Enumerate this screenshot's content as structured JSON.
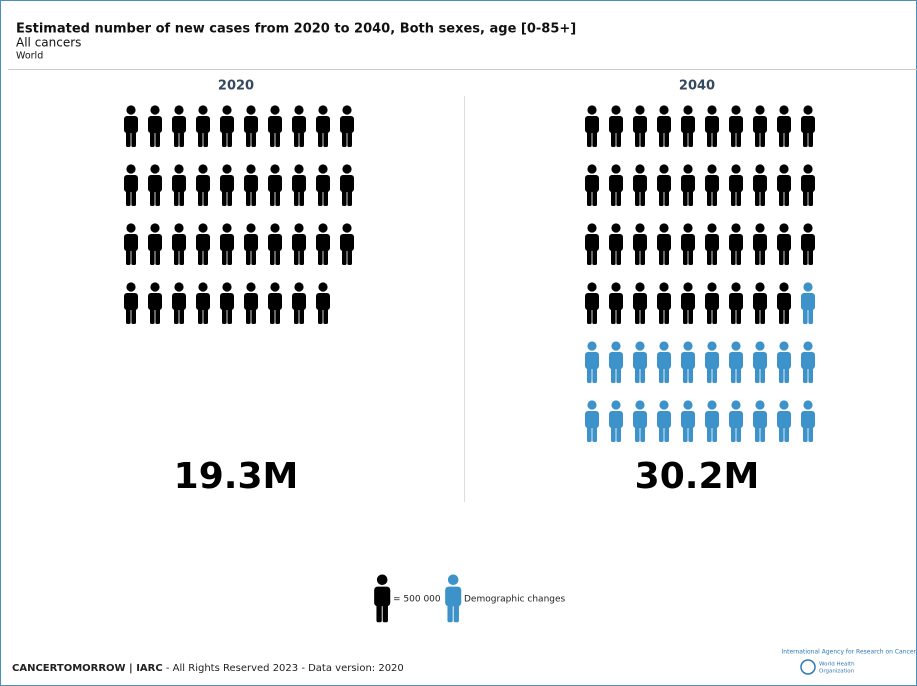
{
  "chart_data": {
    "type": "pictogram",
    "title": "Estimated number of new cases from 2020 to 2040, Both sexes, age [0-85+]",
    "subtitle": "All cancers",
    "region": "World",
    "unit": 500000,
    "unit_label": "= 500 000",
    "change_label": "Demographic changes",
    "base_color": "#000000",
    "change_color": "#3d93c9",
    "panels": [
      {
        "year": "2020",
        "value": 19300000,
        "value_label": "19.3M"
      },
      {
        "year": "2040",
        "value": 30200000,
        "value_label": "30.2M"
      }
    ]
  },
  "footer": {
    "brand": "CANCERTOMORROW | IARC",
    "text": " - All Rights Reserved 2023 - Data version: 2020"
  },
  "logos": {
    "iarc": "International Agency for Research on Cancer",
    "who_line1": "World Health",
    "who_line2": "Organization"
  }
}
